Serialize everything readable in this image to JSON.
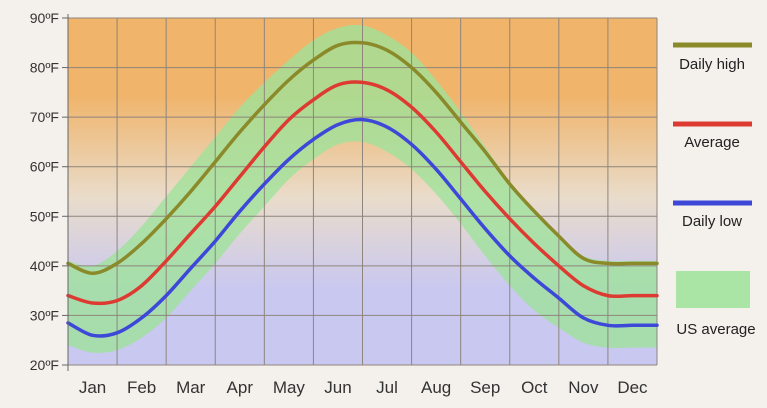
{
  "chart_data": {
    "type": "line",
    "title": "",
    "xlabel": "",
    "ylabel": "",
    "categories": [
      "Jan",
      "Feb",
      "Mar",
      "Apr",
      "May",
      "Jun",
      "Jul",
      "Aug",
      "Sep",
      "Oct",
      "Nov",
      "Dec"
    ],
    "ylim": [
      20,
      90
    ],
    "y_ticks": [
      "20ºF",
      "30ºF",
      "40ºF",
      "50ºF",
      "60ºF",
      "70ºF",
      "80ºF",
      "90ºF"
    ],
    "y_tick_values": [
      20,
      30,
      40,
      50,
      60,
      70,
      80,
      90
    ],
    "grid": true,
    "legend_position": "right",
    "series": [
      {
        "name": "Daily high",
        "color": "#8a8a2a",
        "x": [
          0,
          0.5,
          1,
          1.5,
          2,
          2.5,
          3,
          3.5,
          4,
          4.5,
          5,
          5.5,
          6,
          6.5,
          7,
          7.5,
          8,
          8.5,
          9,
          9.5,
          10,
          10.5,
          11,
          11.5,
          12
        ],
        "values": [
          40.5,
          38.5,
          40.5,
          44.5,
          49.5,
          55,
          61,
          67,
          72.5,
          77.5,
          81.5,
          84.5,
          85,
          83.5,
          80,
          75,
          69,
          63,
          56.5,
          51,
          46,
          41.5,
          40.5,
          40.5,
          40.5
        ]
      },
      {
        "name": "Average",
        "color": "#dd3b32",
        "x": [
          0,
          0.5,
          1,
          1.5,
          2,
          2.5,
          3,
          3.5,
          4,
          4.5,
          5,
          5.5,
          6,
          6.5,
          7,
          7.5,
          8,
          8.5,
          9,
          9.5,
          10,
          10.5,
          11,
          11.5,
          12
        ],
        "values": [
          34,
          32.5,
          33,
          36,
          41,
          46.5,
          52,
          58,
          64,
          69.5,
          73.5,
          76.5,
          77,
          75.5,
          72,
          67,
          61,
          55,
          49.5,
          44.5,
          40,
          36,
          34,
          34,
          34
        ]
      },
      {
        "name": "Daily low",
        "color": "#3d48d8",
        "x": [
          0,
          0.5,
          1,
          1.5,
          2,
          2.5,
          3,
          3.5,
          4,
          4.5,
          5,
          5.5,
          6,
          6.5,
          7,
          7.5,
          8,
          8.5,
          9,
          9.5,
          10,
          10.5,
          11,
          11.5,
          12
        ],
        "values": [
          28.5,
          26,
          26.5,
          29.5,
          34,
          39.5,
          45,
          51,
          56.5,
          61.5,
          65.5,
          68.5,
          69.5,
          68,
          64.5,
          59.5,
          53.5,
          47.5,
          42,
          37.5,
          33.5,
          29.5,
          28,
          28,
          28
        ]
      }
    ],
    "band": {
      "name": "US average",
      "color": "#9de39a",
      "x": [
        0,
        0.5,
        1,
        1.5,
        2,
        2.5,
        3,
        3.5,
        4,
        4.5,
        5,
        5.5,
        6,
        6.5,
        7,
        7.5,
        8,
        8.5,
        9,
        9.5,
        10,
        10.5,
        11,
        11.5,
        12
      ],
      "upper": [
        41,
        40,
        43,
        48,
        54,
        60,
        66,
        72,
        77,
        81.5,
        85.5,
        88,
        88.5,
        86.5,
        83,
        77.5,
        71,
        64,
        57,
        51,
        46,
        42,
        41,
        41,
        41
      ],
      "lower": [
        24,
        22.5,
        23,
        25.5,
        29.5,
        35,
        40.5,
        46.5,
        52,
        57.5,
        61.5,
        64.5,
        65,
        63,
        59.5,
        54.5,
        48.5,
        42,
        36,
        31,
        27.5,
        24.5,
        23.5,
        23.5,
        23.5
      ]
    },
    "background_colors": {
      "warm": "#f0b46a",
      "cool": "#c9c8f0"
    }
  }
}
